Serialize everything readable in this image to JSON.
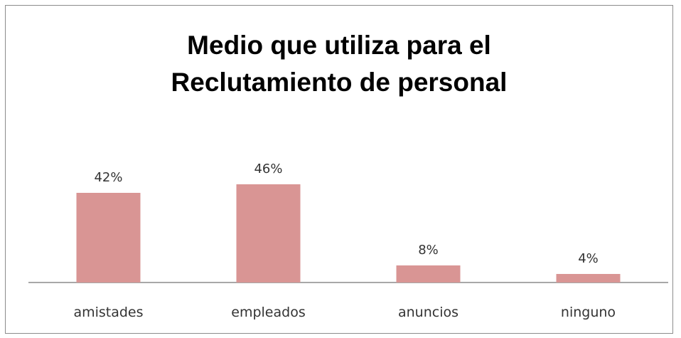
{
  "chart_data": {
    "type": "bar",
    "title_lines": [
      "Medio que utiliza para el",
      "Reclutamiento de personal"
    ],
    "categories": [
      "amistades",
      "empleados",
      "anuncios",
      "ninguno"
    ],
    "values": [
      42,
      46,
      8,
      4
    ],
    "data_labels": [
      "42%",
      "46%",
      "8%",
      "4%"
    ],
    "unit": "%",
    "ylim": [
      0,
      50
    ],
    "grid": false,
    "legend": "none",
    "bar_color": "#d99594",
    "axis_color": "#8c8c8c"
  }
}
